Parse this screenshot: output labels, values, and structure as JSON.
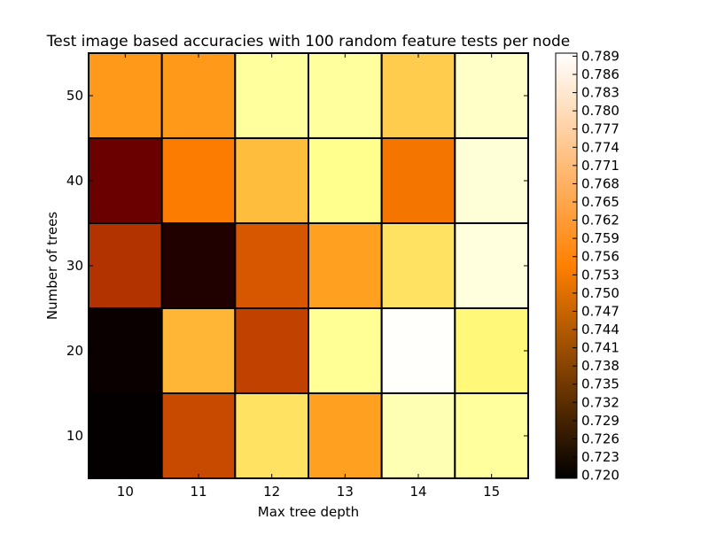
{
  "chart_data": {
    "type": "heatmap",
    "title": "Test image based accuracies with 100 random feature tests per node",
    "xlabel": "Max tree depth",
    "ylabel": "Number of trees",
    "x_categories": [
      "10",
      "11",
      "12",
      "13",
      "14",
      "15"
    ],
    "y_categories": [
      "10",
      "20",
      "30",
      "40",
      "50"
    ],
    "values": [
      [
        0.72,
        0.747,
        0.768,
        0.759,
        0.779,
        0.776
      ],
      [
        0.721,
        0.762,
        0.746,
        0.775,
        0.789,
        0.771
      ],
      [
        0.744,
        0.724,
        0.749,
        0.759,
        0.768,
        0.785
      ],
      [
        0.734,
        0.754,
        0.763,
        0.774,
        0.753,
        0.784
      ],
      [
        0.758,
        0.758,
        0.776,
        0.776,
        0.765,
        0.782
      ]
    ],
    "colormap": "afmhot",
    "vmin": 0.7195,
    "vmax": 0.7895,
    "colorbar_ticks": [
      "0.720",
      "0.723",
      "0.726",
      "0.729",
      "0.732",
      "0.735",
      "0.738",
      "0.741",
      "0.744",
      "0.747",
      "0.750",
      "0.753",
      "0.756",
      "0.759",
      "0.762",
      "0.765",
      "0.768",
      "0.771",
      "0.774",
      "0.777",
      "0.780",
      "0.783",
      "0.786",
      "0.789"
    ],
    "grid": false,
    "legend": "colorbar-right"
  }
}
